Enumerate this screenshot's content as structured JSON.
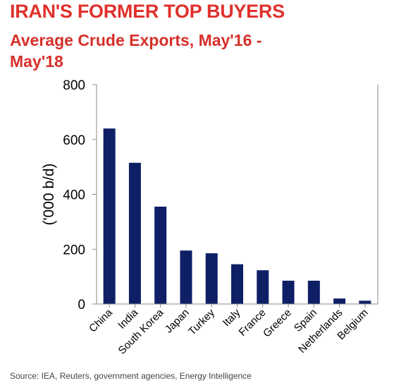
{
  "header": {
    "title": "IRAN'S FORMER TOP BUYERS",
    "subtitle": "Average Crude Exports, May'16 - May'18"
  },
  "footer": {
    "source": "Source: IEA, Reuters, government agencies, Energy Intelligence"
  },
  "colors": {
    "title": "#e0312c",
    "bar": "#0e1f66",
    "axis": "#8a8a8a"
  },
  "chart_data": {
    "type": "bar",
    "title": "IRAN'S FORMER TOP BUYERS",
    "subtitle": "Average Crude Exports, May'16 - May'18",
    "xlabel": "",
    "ylabel": "('000 b/d)",
    "categories": [
      "China",
      "India",
      "South Korea",
      "Japan",
      "Turkey",
      "Italy",
      "France",
      "Greece",
      "Spain",
      "Netherlands",
      "Belgium"
    ],
    "values": [
      640,
      515,
      355,
      195,
      185,
      145,
      123,
      85,
      85,
      20,
      12
    ],
    "ylim": [
      0,
      800
    ],
    "yticks": [
      0,
      200,
      400,
      600,
      800
    ],
    "grid": false,
    "legend": "none"
  }
}
